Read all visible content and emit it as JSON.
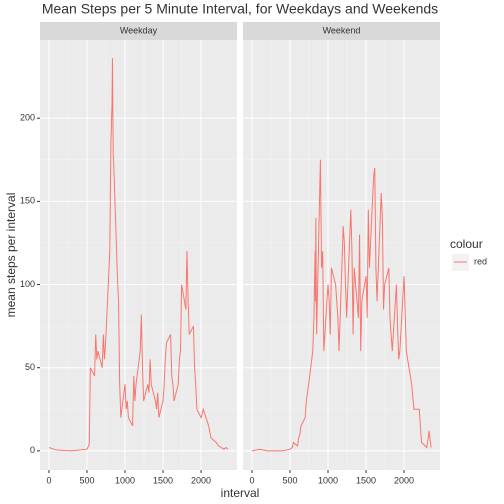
{
  "chart_data": {
    "type": "line",
    "title": "Mean Steps per 5 Minute Interval, for Weekdays and Weekends",
    "x_label": "interval",
    "y_label": "mean steps per interval",
    "color": "#F8766D",
    "legend": {
      "title": "colour",
      "entries": [
        "red"
      ]
    },
    "xlim": [
      -117.75,
      2472.75
    ],
    "ylim": [
      -11.5,
      247
    ],
    "xticks": [
      0,
      500,
      1000,
      1500,
      2000
    ],
    "yticks": [
      0,
      50,
      100,
      150,
      200
    ],
    "grid": true,
    "x": [
      0,
      100,
      200,
      300,
      400,
      500,
      530,
      545,
      600,
      615,
      630,
      645,
      700,
      715,
      730,
      745,
      800,
      815,
      830,
      835,
      840,
      845,
      850,
      900,
      915,
      930,
      945,
      1000,
      1015,
      1030,
      1045,
      1100,
      1115,
      1130,
      1145,
      1200,
      1215,
      1230,
      1245,
      1300,
      1315,
      1330,
      1345,
      1400,
      1415,
      1430,
      1445,
      1500,
      1515,
      1530,
      1545,
      1600,
      1615,
      1630,
      1645,
      1700,
      1715,
      1730,
      1745,
      1800,
      1815,
      1830,
      1845,
      1900,
      1915,
      1930,
      1945,
      2000,
      2030,
      2100,
      2130,
      2200,
      2230,
      2300,
      2330,
      2355
    ],
    "panels": [
      {
        "label": "Weekday",
        "values": [
          2,
          0.5,
          0.2,
          0,
          0.5,
          1,
          4,
          50,
          45,
          70,
          55,
          60,
          50,
          70,
          55,
          65,
          120,
          185,
          210,
          236,
          205,
          178,
          175,
          105,
          90,
          40,
          20,
          40,
          25,
          30,
          20,
          15,
          45,
          30,
          40,
          60,
          82,
          50,
          30,
          40,
          35,
          55,
          40,
          30,
          25,
          35,
          20,
          30,
          40,
          55,
          65,
          70,
          45,
          40,
          30,
          40,
          55,
          60,
          100,
          85,
          120,
          90,
          70,
          75,
          50,
          40,
          25,
          20,
          25,
          15,
          8,
          5,
          3,
          1,
          2,
          1
        ]
      },
      {
        "label": "Weekend",
        "values": [
          0,
          1,
          0,
          0,
          0,
          1,
          2,
          5,
          3,
          8,
          10,
          15,
          20,
          30,
          35,
          40,
          60,
          80,
          120,
          90,
          140,
          100,
          70,
          175,
          110,
          120,
          60,
          100,
          90,
          70,
          110,
          100,
          90,
          80,
          60,
          135,
          125,
          100,
          80,
          145,
          120,
          70,
          110,
          80,
          130,
          60,
          90,
          105,
          80,
          145,
          110,
          165,
          170,
          110,
          90,
          155,
          140,
          85,
          100,
          110,
          80,
          70,
          60,
          100,
          75,
          55,
          60,
          105,
          60,
          40,
          25,
          25,
          5,
          2,
          12,
          2
        ]
      }
    ]
  }
}
